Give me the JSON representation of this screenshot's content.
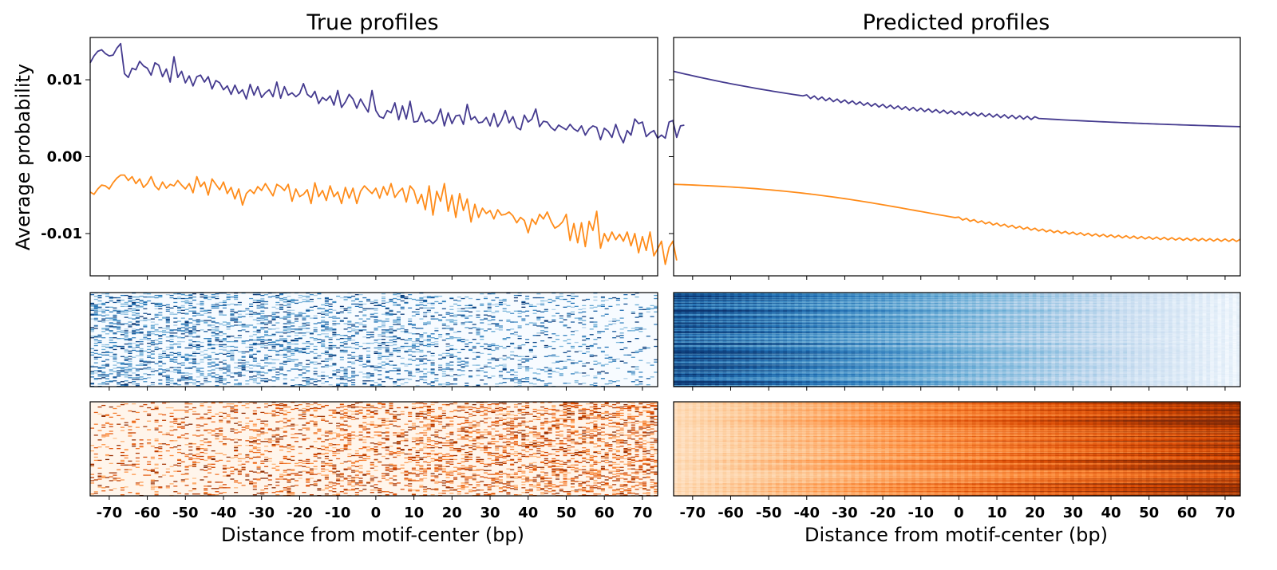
{
  "figure": {
    "left_title": "True profiles",
    "right_title": "Predicted profiles",
    "ylabel": "Average probability",
    "xlabel": "Distance from motif-center (bp)"
  },
  "colors": {
    "positive_strand": "#453b8f",
    "negative_strand": "#ff8c1a",
    "heatmap_top_map": "Blues",
    "heatmap_bottom_map": "Oranges"
  },
  "chart_data": [
    {
      "type": "line",
      "title": "True profiles",
      "xlabel": "",
      "ylabel": "Average probability",
      "xlim": [
        -75,
        74
      ],
      "ylim": [
        -0.0155,
        0.0155
      ],
      "x_ticks": [
        -70,
        -60,
        -50,
        -40,
        -30,
        -20,
        -10,
        0,
        10,
        20,
        30,
        40,
        50,
        60,
        70
      ],
      "y_ticks": [
        {
          "value": -0.01,
          "label": "-0.01"
        },
        {
          "value": 0.0,
          "label": "0.00"
        },
        {
          "value": 0.01,
          "label": "0.01"
        }
      ],
      "x_start": -75,
      "x_step": 1,
      "series": [
        {
          "color": "#453b8f",
          "values": [
            0.0122,
            0.0131,
            0.0137,
            0.0139,
            0.0134,
            0.0131,
            0.0132,
            0.0141,
            0.0147,
            0.0108,
            0.0103,
            0.0115,
            0.0113,
            0.0124,
            0.0118,
            0.0115,
            0.0106,
            0.0122,
            0.0119,
            0.0104,
            0.0114,
            0.0097,
            0.013,
            0.0103,
            0.0111,
            0.0096,
            0.0105,
            0.0092,
            0.0104,
            0.0106,
            0.0097,
            0.0104,
            0.0088,
            0.0099,
            0.0096,
            0.0087,
            0.0092,
            0.0081,
            0.0093,
            0.0082,
            0.0087,
            0.0075,
            0.0094,
            0.008,
            0.0091,
            0.0077,
            0.0083,
            0.0087,
            0.0078,
            0.0097,
            0.0076,
            0.0091,
            0.008,
            0.0083,
            0.0078,
            0.0082,
            0.0095,
            0.0081,
            0.0077,
            0.0085,
            0.0069,
            0.0077,
            0.0073,
            0.0079,
            0.0067,
            0.0086,
            0.0064,
            0.0071,
            0.0081,
            0.0075,
            0.0063,
            0.0075,
            0.0066,
            0.0058,
            0.0086,
            0.006,
            0.0052,
            0.005,
            0.006,
            0.0057,
            0.007,
            0.0048,
            0.0066,
            0.0049,
            0.0072,
            0.0045,
            0.0046,
            0.0058,
            0.0045,
            0.0048,
            0.0043,
            0.0048,
            0.0062,
            0.004,
            0.0057,
            0.0043,
            0.0053,
            0.0054,
            0.0042,
            0.0068,
            0.0048,
            0.0052,
            0.0044,
            0.0045,
            0.0051,
            0.004,
            0.0056,
            0.0039,
            0.0047,
            0.006,
            0.0044,
            0.0052,
            0.0038,
            0.0035,
            0.0054,
            0.0045,
            0.0049,
            0.0062,
            0.0039,
            0.0046,
            0.0045,
            0.0038,
            0.0034,
            0.0041,
            0.0038,
            0.0035,
            0.0042,
            0.0036,
            0.0033,
            0.004,
            0.0028,
            0.0036,
            0.004,
            0.0038,
            0.0022,
            0.0037,
            0.0033,
            0.0025,
            0.0042,
            0.0028,
            0.0018,
            0.0034,
            0.0028,
            0.0049,
            0.0043,
            0.0045,
            0.0026,
            0.0031,
            0.0034,
            0.0024,
            0.0028,
            0.0024,
            0.0045,
            0.0047,
            0.0025,
            0.004,
            0.0041
          ]
        },
        {
          "color": "#ff8c1a",
          "values": [
            -0.0046,
            -0.0049,
            -0.0042,
            -0.0037,
            -0.0038,
            -0.0042,
            -0.0034,
            -0.0028,
            -0.0024,
            -0.0024,
            -0.0031,
            -0.0026,
            -0.0035,
            -0.0029,
            -0.004,
            -0.0035,
            -0.0026,
            -0.0038,
            -0.0043,
            -0.0033,
            -0.0041,
            -0.0036,
            -0.0038,
            -0.0031,
            -0.0037,
            -0.0042,
            -0.0035,
            -0.0047,
            -0.0026,
            -0.0039,
            -0.0033,
            -0.005,
            -0.0029,
            -0.0036,
            -0.0043,
            -0.0033,
            -0.0048,
            -0.004,
            -0.0055,
            -0.0042,
            -0.0063,
            -0.0048,
            -0.0043,
            -0.0048,
            -0.0039,
            -0.0044,
            -0.0035,
            -0.0043,
            -0.0051,
            -0.0036,
            -0.0039,
            -0.0044,
            -0.0036,
            -0.0058,
            -0.0042,
            -0.0052,
            -0.0049,
            -0.0043,
            -0.0061,
            -0.0034,
            -0.0052,
            -0.0044,
            -0.0057,
            -0.0038,
            -0.0052,
            -0.0046,
            -0.0061,
            -0.004,
            -0.0054,
            -0.0041,
            -0.0061,
            -0.0045,
            -0.0038,
            -0.0043,
            -0.0048,
            -0.0041,
            -0.0054,
            -0.0039,
            -0.005,
            -0.0035,
            -0.0053,
            -0.0046,
            -0.0041,
            -0.0059,
            -0.0038,
            -0.0044,
            -0.0061,
            -0.0049,
            -0.0069,
            -0.0038,
            -0.0076,
            -0.0045,
            -0.0058,
            -0.0035,
            -0.0071,
            -0.005,
            -0.0079,
            -0.0048,
            -0.007,
            -0.0055,
            -0.0085,
            -0.0062,
            -0.0079,
            -0.0067,
            -0.0074,
            -0.007,
            -0.0081,
            -0.0069,
            -0.0076,
            -0.0075,
            -0.0072,
            -0.0077,
            -0.0086,
            -0.0079,
            -0.0083,
            -0.0099,
            -0.0081,
            -0.0088,
            -0.0075,
            -0.0081,
            -0.0072,
            -0.0084,
            -0.0093,
            -0.009,
            -0.0085,
            -0.0075,
            -0.0109,
            -0.0087,
            -0.0112,
            -0.0086,
            -0.0117,
            -0.0084,
            -0.0096,
            -0.0071,
            -0.0119,
            -0.01,
            -0.011,
            -0.0098,
            -0.0108,
            -0.0101,
            -0.011,
            -0.0098,
            -0.0116,
            -0.01,
            -0.0125,
            -0.0104,
            -0.0122,
            -0.0098,
            -0.0129,
            -0.012,
            -0.011,
            -0.014,
            -0.0118,
            -0.011,
            -0.0135
          ]
        }
      ]
    },
    {
      "type": "line",
      "title": "Predicted profiles",
      "xlabel": "",
      "ylabel": "",
      "xlim": [
        -75,
        74
      ],
      "ylim": [
        -0.0155,
        0.0155
      ],
      "x_ticks": [
        -70,
        -60,
        -50,
        -40,
        -30,
        -20,
        -10,
        0,
        10,
        20,
        30,
        40,
        50,
        60,
        70
      ],
      "x_start": -75,
      "x_step": 1,
      "series": [
        {
          "color": "#453b8f",
          "start": 0.0111,
          "end": 0.0039,
          "ripple": 0.0004,
          "ripple_range": [
            -40,
            20
          ]
        },
        {
          "color": "#ff8c1a",
          "start": -0.0036,
          "end": -0.0109,
          "ripple": 0.0003,
          "ripple_range": [
            0,
            74
          ]
        }
      ]
    },
    {
      "type": "heatmap",
      "title": "True profiles (positive strand examples)",
      "colormap": "Blues",
      "xlim": [
        -75,
        74
      ],
      "rows": 120,
      "pattern": "sparse, denser toward the left"
    },
    {
      "type": "heatmap",
      "title": "Predicted profiles (positive strand examples)",
      "colormap": "Blues",
      "xlim": [
        -75,
        74
      ],
      "rows": 120,
      "pattern": "smooth, dark on left fading to light on right"
    },
    {
      "type": "heatmap",
      "title": "True profiles (negative strand examples)",
      "colormap": "Oranges",
      "xlim": [
        -75,
        74
      ],
      "rows": 120,
      "pattern": "sparse, denser toward the right"
    },
    {
      "type": "heatmap",
      "title": "Predicted profiles (negative strand examples)",
      "colormap": "Oranges",
      "xlim": [
        -75,
        74
      ],
      "rows": 120,
      "pattern": "smooth, light on left darkening to the right"
    }
  ]
}
